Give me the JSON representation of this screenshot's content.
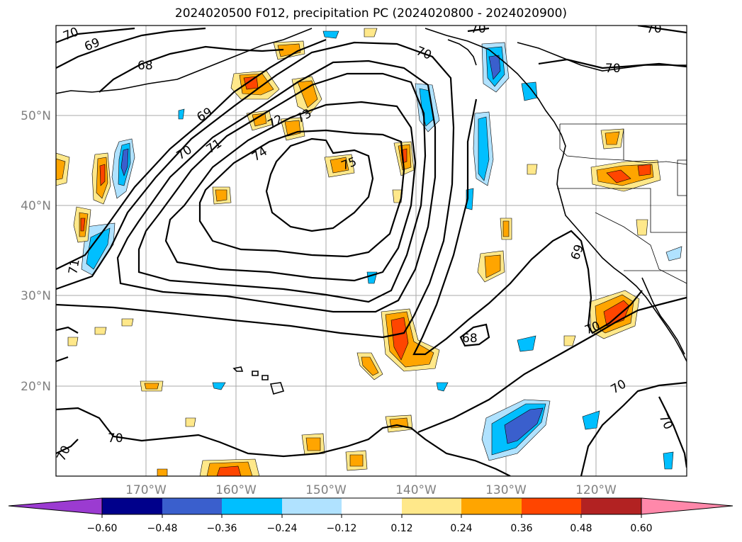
{
  "title": "2024020500 F012, precipitation PC (2024020800 - 2024020900)",
  "lat_labels": [
    "50°N",
    "40°N",
    "30°N",
    "20°N"
  ],
  "lon_labels": [
    "170°W",
    "160°W",
    "150°W",
    "140°W",
    "130°W",
    "120°W"
  ],
  "contour_labels": [
    "70",
    "69",
    "68",
    "69",
    "70",
    "71",
    "72",
    "73",
    "74",
    "75",
    "70",
    "70",
    "69",
    "68",
    "70",
    "70",
    "70",
    "70",
    "71"
  ],
  "colorbar": {
    "ticks": [
      "−0.60",
      "−0.48",
      "−0.36",
      "−0.24",
      "−0.12",
      "0.12",
      "0.24",
      "0.36",
      "0.48",
      "0.60"
    ],
    "colors": [
      "#9b3bd1",
      "#00008b",
      "#3a5fcd",
      "#00bfff",
      "#b0e2ff",
      "#ffffff",
      "#ffe88a",
      "#ffa500",
      "#ff4500",
      "#b22222",
      "#ff88aa"
    ]
  }
}
